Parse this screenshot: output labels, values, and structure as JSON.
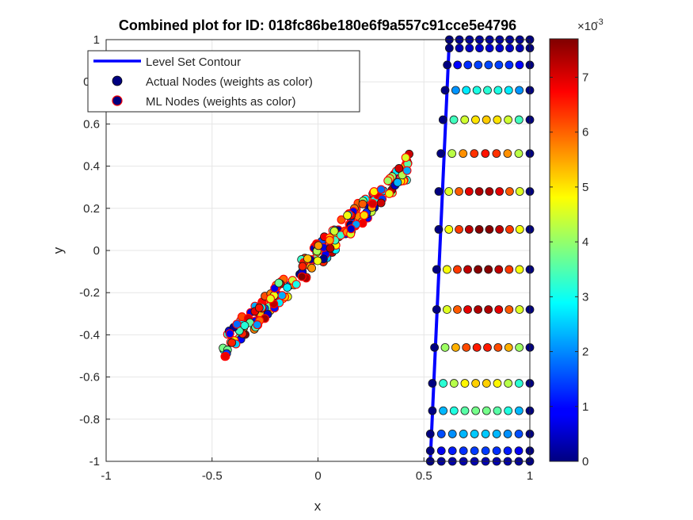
{
  "chart_data": {
    "type": "scatter",
    "title": "Combined plot for ID: 018fc86be180e6f9a557c91cce5e4796",
    "xlabel": "x",
    "ylabel": "y",
    "xlim": [
      -1,
      1
    ],
    "ylim": [
      -1,
      1
    ],
    "grid": true,
    "legend_placement": "top-left",
    "x_tick_labels": [
      "-1",
      "-0.5",
      "0",
      "0.5",
      "1"
    ],
    "x_tick_values": [
      -1,
      -0.5,
      0,
      0.5,
      1
    ],
    "y_tick_labels": [
      "-1",
      "-0.8",
      "-0.6",
      "-0.4",
      "-0.2",
      "0",
      "0.2",
      "0.4",
      "0.6",
      "0.8",
      "1"
    ],
    "y_tick_values": [
      -1,
      -0.8,
      -0.6,
      -0.4,
      -0.2,
      0,
      0.2,
      0.4,
      0.6,
      0.8,
      1
    ],
    "legend": [
      {
        "label": "Level Set Contour",
        "kind": "line",
        "color": "#0000ff"
      },
      {
        "label": "Actual Nodes (weights as color)",
        "kind": "marker",
        "face": "#000080",
        "edge": "#000000"
      },
      {
        "label": "ML Nodes (weights as color)",
        "kind": "marker",
        "face": "#000080",
        "edge": "#ff0000"
      }
    ],
    "colorbar": {
      "colormap": "jet",
      "range": [
        0,
        0.0077
      ],
      "tick_values": [
        0,
        1,
        2,
        3,
        4,
        5,
        6,
        7
      ],
      "tick_labels": [
        "0",
        "1",
        "2",
        "3",
        "4",
        "5",
        "6",
        "7"
      ],
      "exponent_label": "×10",
      "exponent_power": "-3"
    },
    "level_set_contour": {
      "x": [
        0.53,
        0.62
      ],
      "y": [
        -1,
        1
      ]
    },
    "actual_nodes": {
      "rows_y": [
        1.0,
        0.96,
        0.88,
        0.76,
        0.62,
        0.46,
        0.28,
        0.1,
        -0.09,
        -0.28,
        -0.46,
        -0.63,
        -0.76,
        -0.87,
        -0.95,
        -1.0
      ],
      "rows_xstart": [
        0.62,
        0.62,
        0.61,
        0.6,
        0.59,
        0.58,
        0.57,
        0.57,
        0.56,
        0.56,
        0.55,
        0.54,
        0.54,
        0.53,
        0.53,
        0.53
      ],
      "rows_peak_weight": [
        0.0003,
        0.0006,
        0.0015,
        0.0032,
        0.0052,
        0.0066,
        0.0074,
        0.0077,
        0.0077,
        0.0074,
        0.0066,
        0.0052,
        0.0038,
        0.0025,
        0.0014,
        0.0004
      ]
    },
    "ml_nodes_cluster": {
      "line_slope": 0.98,
      "line_intercept": -0.02,
      "x_range": [
        -0.45,
        0.44
      ]
    },
    "colors": {
      "contour": "#0000ff",
      "ml_edge": "#ff0000",
      "actual_edge": "#1a1a1a",
      "grid": "#e6e6e6",
      "axis": "#262626"
    }
  }
}
